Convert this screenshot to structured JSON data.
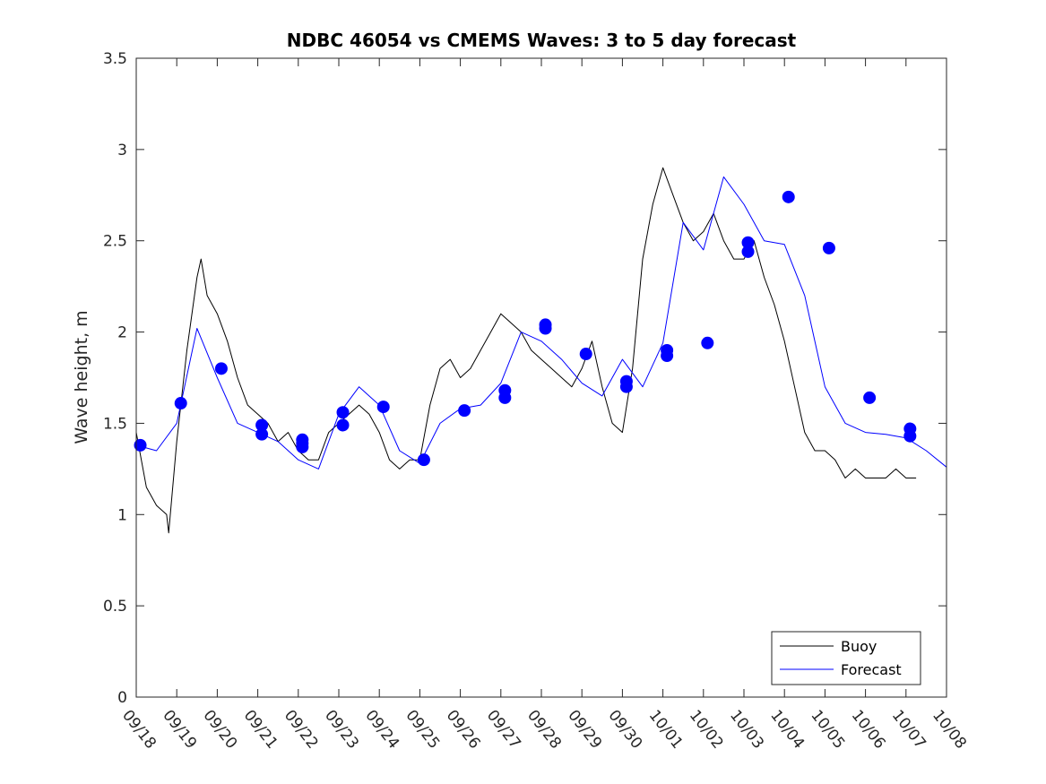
{
  "chart_data": {
    "type": "line",
    "title": "NDBC 46054 vs CMEMS Waves: 3 to 5 day forecast",
    "xlabel": "",
    "ylabel": "Wave height, m",
    "xlim": [
      0,
      20
    ],
    "ylim": [
      0,
      3.5
    ],
    "x_tick_labels": [
      "09/18",
      "09/19",
      "09/20",
      "09/21",
      "09/22",
      "09/23",
      "09/24",
      "09/25",
      "09/26",
      "09/27",
      "09/28",
      "09/29",
      "09/30",
      "10/01",
      "10/02",
      "10/03",
      "10/04",
      "10/05",
      "10/06",
      "10/07",
      "10/08"
    ],
    "y_ticks": [
      0,
      0.5,
      1,
      1.5,
      2,
      2.5,
      3,
      3.5
    ],
    "y_tick_labels": [
      "0",
      "0.5",
      "1",
      "1.5",
      "2",
      "2.5",
      "3",
      "3.5"
    ],
    "legend": {
      "location": "bottom-right",
      "entries": [
        "Buoy",
        "Forecast"
      ]
    },
    "colors": {
      "buoy": "#000000",
      "forecast": "#0000ff",
      "axis": "#262626"
    },
    "series": [
      {
        "name": "Buoy",
        "color": "#000000",
        "x": [
          0,
          0.25,
          0.5,
          0.75,
          0.8,
          1.0,
          1.25,
          1.5,
          1.6,
          1.75,
          2.0,
          2.25,
          2.5,
          2.75,
          3.0,
          3.25,
          3.5,
          3.75,
          4.0,
          4.25,
          4.5,
          4.75,
          5.0,
          5.25,
          5.5,
          5.75,
          6.0,
          6.25,
          6.5,
          6.75,
          7.0,
          7.25,
          7.5,
          7.75,
          8.0,
          8.25,
          8.5,
          8.75,
          9.0,
          9.25,
          9.5,
          9.75,
          10.0,
          10.25,
          10.5,
          10.75,
          11.0,
          11.25,
          11.5,
          11.75,
          12.0,
          12.25,
          12.5,
          12.75,
          13.0,
          13.25,
          13.5,
          13.75,
          14.0,
          14.25,
          14.5,
          14.75,
          15.0,
          15.25,
          15.5,
          15.75,
          16.0,
          16.25,
          16.5,
          16.75,
          17.0,
          17.25,
          17.5,
          17.75,
          18.0,
          18.25,
          18.5,
          18.75,
          19.0,
          19.25
        ],
        "values": [
          1.45,
          1.15,
          1.05,
          1.0,
          0.9,
          1.4,
          1.9,
          2.3,
          2.4,
          2.2,
          2.1,
          1.95,
          1.75,
          1.6,
          1.55,
          1.5,
          1.4,
          1.45,
          1.35,
          1.3,
          1.3,
          1.45,
          1.5,
          1.55,
          1.6,
          1.55,
          1.45,
          1.3,
          1.25,
          1.3,
          1.3,
          1.6,
          1.8,
          1.85,
          1.75,
          1.8,
          1.9,
          2.0,
          2.1,
          2.05,
          2.0,
          1.9,
          1.85,
          1.8,
          1.75,
          1.7,
          1.8,
          1.95,
          1.7,
          1.5,
          1.45,
          1.8,
          2.4,
          2.7,
          2.9,
          2.75,
          2.6,
          2.5,
          2.55,
          2.65,
          2.5,
          2.4,
          2.4,
          2.5,
          2.3,
          2.15,
          1.95,
          1.7,
          1.45,
          1.35,
          1.35,
          1.3,
          1.2,
          1.25,
          1.2,
          1.2,
          1.2,
          1.25,
          1.2,
          1.2
        ]
      },
      {
        "name": "Forecast",
        "color": "#0000ff",
        "x": [
          0,
          0.5,
          1.0,
          1.5,
          2.0,
          2.5,
          3.0,
          3.5,
          4.0,
          4.5,
          5.0,
          5.5,
          6.0,
          6.5,
          7.0,
          7.5,
          8.0,
          8.5,
          9.0,
          9.5,
          10.0,
          10.5,
          11.0,
          11.5,
          12.0,
          12.5,
          13.0,
          13.5,
          14.0,
          14.5,
          15.0,
          15.5,
          16.0,
          16.5,
          17.0,
          17.5,
          18.0,
          18.5,
          19.0,
          19.5,
          20.0
        ],
        "values": [
          1.38,
          1.35,
          1.5,
          2.02,
          1.75,
          1.5,
          1.45,
          1.4,
          1.3,
          1.25,
          1.55,
          1.7,
          1.6,
          1.35,
          1.28,
          1.5,
          1.58,
          1.6,
          1.72,
          2.0,
          1.95,
          1.85,
          1.72,
          1.65,
          1.85,
          1.7,
          1.94,
          2.6,
          2.45,
          2.85,
          2.7,
          2.5,
          2.48,
          2.2,
          1.7,
          1.5,
          1.45,
          1.44,
          1.42,
          1.35,
          1.26
        ]
      }
    ],
    "forecast_markers": {
      "x": [
        0.1,
        1.1,
        2.1,
        3.1,
        3.1,
        4.1,
        4.1,
        4.1,
        5.1,
        5.1,
        6.1,
        7.1,
        8.1,
        9.1,
        9.1,
        10.1,
        10.1,
        11.1,
        12.1,
        12.1,
        13.1,
        13.1,
        14.1,
        15.1,
        15.1,
        16.1,
        17.1,
        18.1,
        19.1,
        19.1
      ],
      "values": [
        1.38,
        1.61,
        1.8,
        1.49,
        1.44,
        1.41,
        1.39,
        1.37,
        1.56,
        1.49,
        1.59,
        1.3,
        1.57,
        1.68,
        1.64,
        2.04,
        2.02,
        1.88,
        1.73,
        1.7,
        1.9,
        1.87,
        1.94,
        2.49,
        2.44,
        2.74,
        2.46,
        1.64,
        1.47,
        1.43
      ]
    }
  }
}
